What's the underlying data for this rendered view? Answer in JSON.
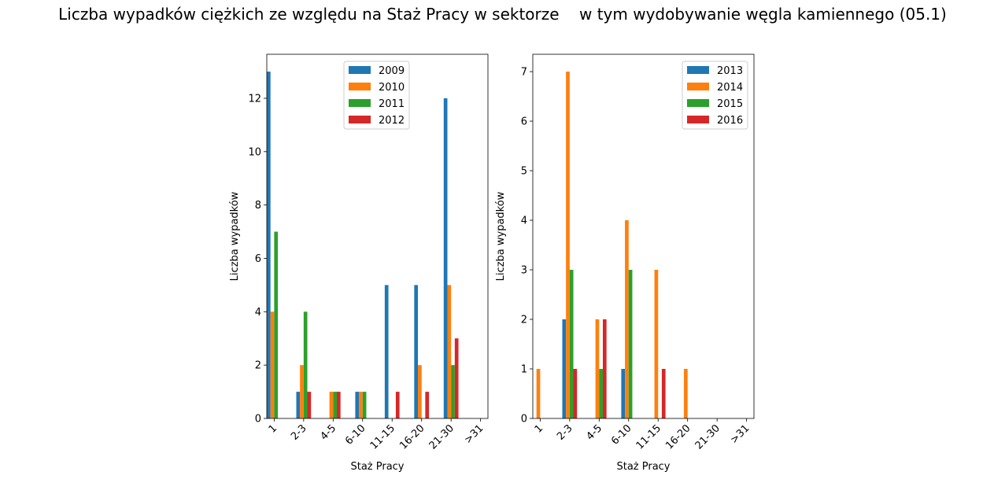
{
  "figure": {
    "title": "Liczba wypadków ciężkich ze względu na Staż Pracy w sektorze    w tym wydobywanie węgla kamiennego (05.1)"
  },
  "colors": {
    "series": [
      "#1f77b4",
      "#ff7f0e",
      "#2ca02c",
      "#d62728"
    ]
  },
  "chart_data": [
    {
      "type": "bar",
      "xlabel": "Staż Pracy",
      "ylabel": "Liczba wypadków",
      "categories": [
        "1",
        "2-3",
        "4-5",
        "6-10",
        "11-15",
        "16-20",
        "21-30",
        ">31"
      ],
      "ylim": [
        0,
        13.65
      ],
      "yticks": [
        0,
        2,
        4,
        6,
        8,
        10,
        12
      ],
      "legend_position": "top-center",
      "grid": false,
      "series": [
        {
          "name": "2009",
          "values": [
            13,
            1,
            0,
            1,
            5,
            5,
            12,
            0
          ]
        },
        {
          "name": "2010",
          "values": [
            4,
            2,
            1,
            1,
            0,
            2,
            5,
            0
          ]
        },
        {
          "name": "2011",
          "values": [
            7,
            4,
            1,
            1,
            0,
            0,
            2,
            0
          ]
        },
        {
          "name": "2012",
          "values": [
            0,
            1,
            1,
            0,
            1,
            1,
            3,
            0
          ]
        }
      ]
    },
    {
      "type": "bar",
      "xlabel": "Staż Pracy",
      "ylabel": "Liczba wypadków",
      "categories": [
        "1",
        "2-3",
        "4-5",
        "6-10",
        "11-15",
        "16-20",
        "21-30",
        ">31"
      ],
      "ylim": [
        0,
        7.35
      ],
      "yticks": [
        0,
        1,
        2,
        3,
        4,
        5,
        6,
        7
      ],
      "legend_position": "top-right",
      "grid": false,
      "series": [
        {
          "name": "2013",
          "values": [
            0,
            2,
            0,
            1,
            0,
            0,
            0,
            0
          ]
        },
        {
          "name": "2014",
          "values": [
            1,
            7,
            2,
            4,
            3,
            1,
            0,
            0
          ]
        },
        {
          "name": "2015",
          "values": [
            0,
            3,
            1,
            3,
            0,
            0,
            0,
            0
          ]
        },
        {
          "name": "2016",
          "values": [
            0,
            1,
            2,
            0,
            1,
            0,
            0,
            0
          ]
        }
      ]
    }
  ]
}
